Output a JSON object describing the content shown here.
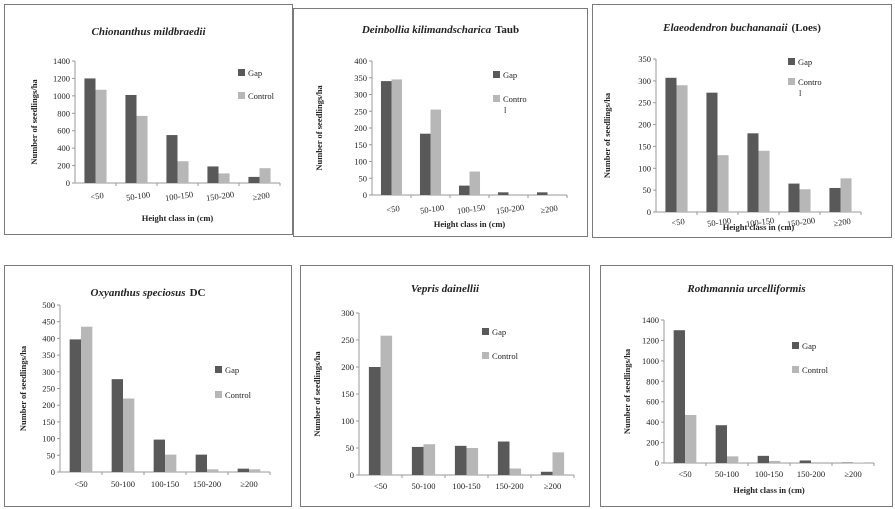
{
  "colors": {
    "gap": "#595959",
    "control": "#b7b7b7",
    "axis": "#9a9a9a"
  },
  "chart_data": [
    {
      "type": "bar",
      "title": "Chionanthus mildbraedii",
      "title_suffix": "",
      "xlabel": "Height class in (cm)",
      "ylabel": "Number of seedlings/ha",
      "categories": [
        "<50",
        "50-100",
        "100-150",
        "150-200",
        "≥200"
      ],
      "ylim": [
        0,
        1400
      ],
      "yticks": [
        0,
        200,
        400,
        600,
        800,
        1000,
        1200,
        1400
      ],
      "series": [
        {
          "name": "Gap",
          "values": [
            1200,
            1010,
            550,
            190,
            70
          ]
        },
        {
          "name": "Control",
          "values": [
            1070,
            770,
            250,
            110,
            170
          ]
        }
      ],
      "legend_position": "right"
    },
    {
      "type": "bar",
      "title": "Deinbollia kilimandscharica",
      "title_suffix": "Taub",
      "xlabel": "Height class in (cm)",
      "ylabel": "Number of seedlings/ha",
      "categories": [
        "<50",
        "50-100",
        "100-150",
        "150-200",
        "≥200"
      ],
      "ylim": [
        0,
        400
      ],
      "yticks": [
        0,
        50,
        100,
        150,
        200,
        250,
        300,
        350,
        400
      ],
      "series": [
        {
          "name": "Gap",
          "values": [
            340,
            183,
            28,
            8,
            8
          ]
        },
        {
          "name": "Contro  l",
          "values": [
            345,
            255,
            70,
            0,
            0
          ]
        }
      ],
      "legend_position": "right"
    },
    {
      "type": "bar",
      "title": "Elaeodendron buchananaii",
      "title_suffix": "(Loes)",
      "xlabel": "Height class in (cm)",
      "ylabel": "Number of seedlings/ha",
      "categories": [
        "<50",
        "50-100",
        "100-150",
        "150-200",
        "≥200"
      ],
      "ylim": [
        0,
        350
      ],
      "yticks": [
        0,
        50,
        100,
        150,
        200,
        250,
        300,
        350
      ],
      "series": [
        {
          "name": "Gap",
          "values": [
            307,
            273,
            180,
            65,
            55
          ]
        },
        {
          "name": "Contro  l",
          "values": [
            290,
            130,
            140,
            52,
            77
          ]
        }
      ],
      "legend_position": "right"
    },
    {
      "type": "bar",
      "title": "Oxyanthus speciosus",
      "title_suffix": "DC",
      "xlabel": "",
      "ylabel": "Number of seedlings/ha",
      "categories": [
        "<50",
        "50-100",
        "100-150",
        "150-200",
        "≥200"
      ],
      "ylim": [
        0,
        500
      ],
      "yticks": [
        0,
        50,
        100,
        150,
        200,
        250,
        300,
        350,
        400,
        450,
        500
      ],
      "series": [
        {
          "name": "Gap",
          "values": [
            397,
            278,
            97,
            52,
            10
          ]
        },
        {
          "name": "Control",
          "values": [
            435,
            220,
            52,
            8,
            8
          ]
        }
      ],
      "legend_position": "right"
    },
    {
      "type": "bar",
      "title": "Vepris dainellii",
      "title_suffix": "",
      "xlabel": "",
      "ylabel": "Number of seedlings/ha",
      "categories": [
        "<50",
        "50-100",
        "100-150",
        "150-200",
        "≥200"
      ],
      "ylim": [
        0,
        300
      ],
      "yticks": [
        0,
        50,
        100,
        150,
        200,
        250,
        300
      ],
      "series": [
        {
          "name": "Gap",
          "values": [
            200,
            52,
            54,
            62,
            6
          ]
        },
        {
          "name": "Control",
          "values": [
            258,
            57,
            50,
            12,
            42
          ]
        }
      ],
      "legend_position": "right"
    },
    {
      "type": "bar",
      "title": "Rothmannia urcelliformis",
      "title_suffix": "",
      "xlabel": "Height class in (cm)",
      "ylabel": "Number of seedlings/ha",
      "categories": [
        "<50",
        "50-100",
        "100-150",
        "150-200",
        "≥200"
      ],
      "ylim": [
        0,
        1400
      ],
      "yticks": [
        0,
        200,
        400,
        600,
        800,
        1000,
        1200,
        1400
      ],
      "series": [
        {
          "name": "Gap",
          "values": [
            1300,
            370,
            70,
            25,
            5
          ]
        },
        {
          "name": "Control",
          "values": [
            470,
            65,
            20,
            0,
            5
          ]
        }
      ],
      "legend_position": "right"
    }
  ]
}
